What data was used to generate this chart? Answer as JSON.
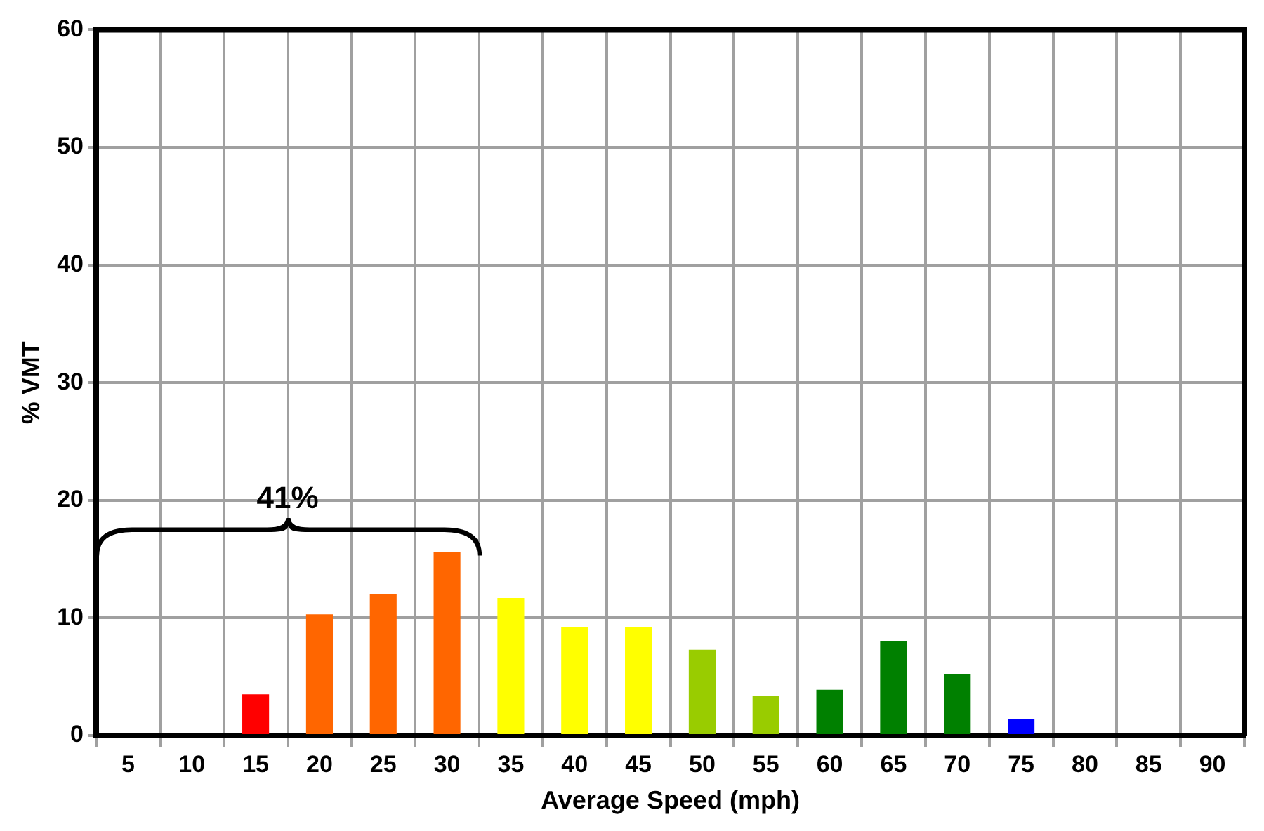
{
  "chart_data": {
    "type": "bar",
    "xlabel": "Average Speed (mph)",
    "ylabel": "% VMT",
    "categories": [
      "5",
      "10",
      "15",
      "20",
      "25",
      "30",
      "35",
      "40",
      "45",
      "50",
      "55",
      "60",
      "65",
      "70",
      "75",
      "80",
      "85",
      "90"
    ],
    "values": [
      0,
      null,
      3.5,
      10.3,
      12,
      15.6,
      11.7,
      9.2,
      9.2,
      7.3,
      3.4,
      3.9,
      8,
      5.2,
      1.4,
      0,
      0,
      0
    ],
    "colors": [
      "#ff0000",
      "#ff0000",
      "#ff0000",
      "#ff6600",
      "#ff6600",
      "#ff6600",
      "#ffff00",
      "#ffff00",
      "#ffff00",
      "#99cc00",
      "#99cc00",
      "#008000",
      "#008000",
      "#008000",
      "#0000ff",
      "#0000ff",
      "#0000ff",
      "#0000ff"
    ],
    "ylim": [
      0,
      60
    ],
    "yticks": [
      0,
      10,
      20,
      30,
      40,
      50,
      60
    ],
    "grid": true,
    "legend": false,
    "annotations": [
      "41%"
    ]
  }
}
